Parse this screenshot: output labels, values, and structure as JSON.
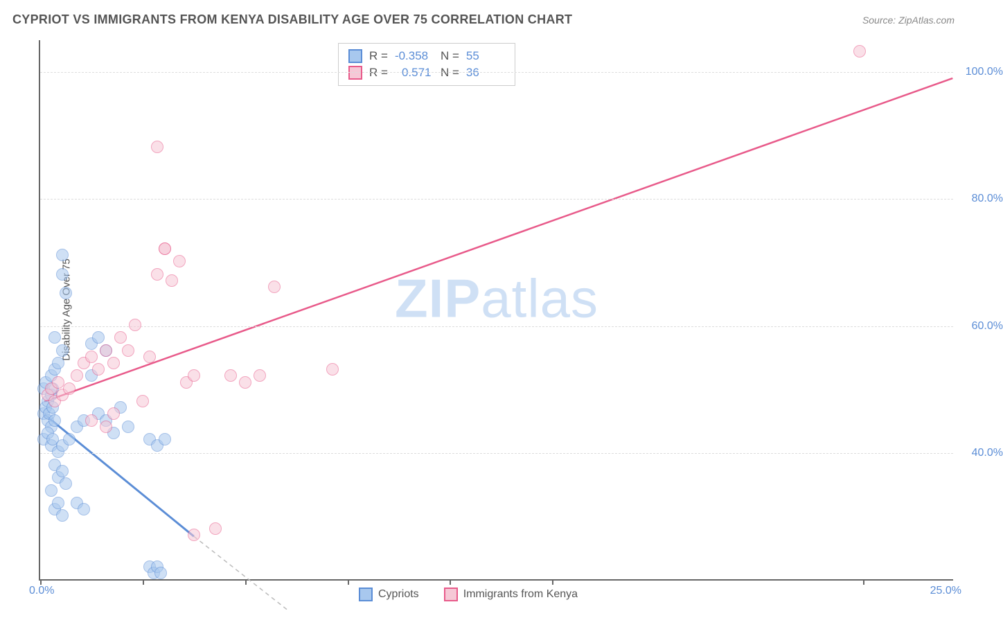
{
  "title": "CYPRIOT VS IMMIGRANTS FROM KENYA DISABILITY AGE OVER 75 CORRELATION CHART",
  "source": "Source: ZipAtlas.com",
  "watermark_bold": "ZIP",
  "watermark_light": "atlas",
  "chart": {
    "type": "scatter",
    "xlim": [
      0,
      25
    ],
    "ylim": [
      20,
      105
    ],
    "x_ticks": [
      0,
      2.8,
      5.6,
      8.4,
      11.2,
      14.0,
      22.5
    ],
    "x_tick_labels": {
      "0": "0.0%",
      "25": "25.0%"
    },
    "y_ticks": [
      40,
      60,
      80,
      100
    ],
    "y_tick_labels": {
      "40": "40.0%",
      "60": "60.0%",
      "80": "80.0%",
      "100": "100.0%"
    },
    "y_axis_title": "Disability Age Over 75",
    "grid_color": "#dddddd",
    "axis_color": "#666666",
    "background_color": "#ffffff",
    "series": [
      {
        "name": "Cypriots",
        "fill_color": "#a8c8ee",
        "stroke_color": "#5b8dd6",
        "fill_opacity": 0.55,
        "r_value": "-0.358",
        "n_value": "55",
        "trend": {
          "x1": 0.1,
          "y1": 46,
          "x2": 5.0,
          "y2": 23,
          "solid_until_x": 4.2,
          "dash_to_x": 6.8,
          "dash_to_y": 15
        },
        "points": [
          [
            0.1,
            46
          ],
          [
            0.15,
            47
          ],
          [
            0.2,
            45
          ],
          [
            0.2,
            48
          ],
          [
            0.25,
            46
          ],
          [
            0.3,
            44
          ],
          [
            0.3,
            49
          ],
          [
            0.35,
            47
          ],
          [
            0.4,
            45
          ],
          [
            0.1,
            50
          ],
          [
            0.15,
            51
          ],
          [
            0.3,
            52
          ],
          [
            0.35,
            50
          ],
          [
            0.4,
            53
          ],
          [
            0.5,
            54
          ],
          [
            0.6,
            56
          ],
          [
            0.4,
            58
          ],
          [
            0.1,
            42
          ],
          [
            0.2,
            43
          ],
          [
            0.3,
            41
          ],
          [
            0.35,
            42
          ],
          [
            0.5,
            40
          ],
          [
            0.6,
            41
          ],
          [
            0.8,
            42
          ],
          [
            1.0,
            44
          ],
          [
            1.2,
            45
          ],
          [
            0.4,
            38
          ],
          [
            0.5,
            36
          ],
          [
            0.6,
            37
          ],
          [
            0.7,
            35
          ],
          [
            0.3,
            34
          ],
          [
            0.4,
            31
          ],
          [
            0.5,
            32
          ],
          [
            0.6,
            30
          ],
          [
            1.0,
            32
          ],
          [
            1.2,
            31
          ],
          [
            0.6,
            71
          ],
          [
            0.6,
            68
          ],
          [
            0.7,
            65
          ],
          [
            1.6,
            46
          ],
          [
            1.8,
            45
          ],
          [
            2.0,
            43
          ],
          [
            2.2,
            47
          ],
          [
            2.4,
            44
          ],
          [
            3.0,
            42
          ],
          [
            3.2,
            41
          ],
          [
            3.4,
            42
          ],
          [
            3.0,
            22
          ],
          [
            3.1,
            21
          ],
          [
            3.2,
            22
          ],
          [
            3.3,
            21
          ],
          [
            1.4,
            57
          ],
          [
            1.6,
            58
          ],
          [
            1.8,
            56
          ],
          [
            1.4,
            52
          ]
        ]
      },
      {
        "name": "Immigrants from Kenya",
        "fill_color": "#f6c8d6",
        "stroke_color": "#e85a8a",
        "fill_opacity": 0.55,
        "r_value": "0.571",
        "n_value": "36",
        "trend": {
          "x1": 0.1,
          "y1": 48,
          "x2": 25,
          "y2": 99
        },
        "points": [
          [
            0.2,
            49
          ],
          [
            0.3,
            50
          ],
          [
            0.4,
            48
          ],
          [
            0.5,
            51
          ],
          [
            0.6,
            49
          ],
          [
            0.8,
            50
          ],
          [
            1.0,
            52
          ],
          [
            1.2,
            54
          ],
          [
            1.4,
            55
          ],
          [
            1.6,
            53
          ],
          [
            1.8,
            56
          ],
          [
            2.0,
            54
          ],
          [
            2.2,
            58
          ],
          [
            2.4,
            56
          ],
          [
            2.6,
            60
          ],
          [
            1.4,
            45
          ],
          [
            1.8,
            44
          ],
          [
            2.0,
            46
          ],
          [
            3.0,
            55
          ],
          [
            3.2,
            68
          ],
          [
            3.6,
            67
          ],
          [
            3.4,
            72
          ],
          [
            3.8,
            70
          ],
          [
            4.0,
            51
          ],
          [
            4.2,
            52
          ],
          [
            5.2,
            52
          ],
          [
            5.6,
            51
          ],
          [
            6.0,
            52
          ],
          [
            6.4,
            66
          ],
          [
            8.0,
            53
          ],
          [
            3.2,
            88
          ],
          [
            3.4,
            72
          ],
          [
            4.2,
            27
          ],
          [
            4.8,
            28
          ],
          [
            22.4,
            103
          ],
          [
            2.8,
            48
          ]
        ]
      }
    ]
  },
  "legend": {
    "series1_label": "Cypriots",
    "series2_label": "Immigrants from Kenya"
  }
}
